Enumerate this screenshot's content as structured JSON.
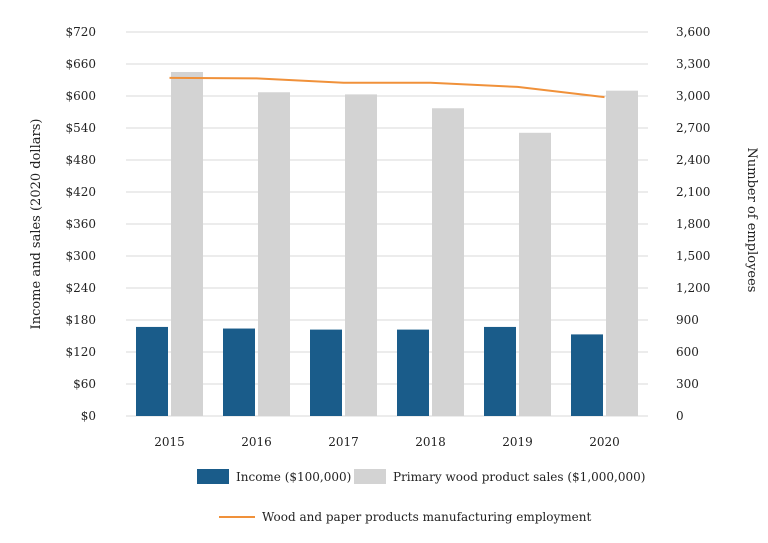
{
  "chart_data": {
    "type": "bar",
    "categories": [
      "2015",
      "2016",
      "2017",
      "2018",
      "2019",
      "2020"
    ],
    "series": [
      {
        "name": "Income ($100,000)",
        "type": "bar",
        "axis": "left",
        "color": "#1a5c8a",
        "values": [
          167,
          164,
          162,
          162,
          167,
          153
        ]
      },
      {
        "name": "Primary wood product sales ($1,000,000)",
        "type": "bar",
        "axis": "left",
        "color": "#d3d3d3",
        "values": [
          645,
          607,
          603,
          577,
          531,
          610
        ]
      },
      {
        "name": "Wood and paper products manufacturing employment",
        "type": "line",
        "axis": "right",
        "color": "#f0913a",
        "values": [
          3170,
          3165,
          3125,
          3125,
          3085,
          2990
        ]
      }
    ],
    "ylabel": "Income and sales (2020 dollars)",
    "ylabel_right": "Number of employees",
    "ylim": [
      0,
      720
    ],
    "ylim_right": [
      0,
      3600
    ],
    "yticks": [
      "$0",
      "$60",
      "$120",
      "$180",
      "$240",
      "$300",
      "$360",
      "$420",
      "$480",
      "$540",
      "$600",
      "$660",
      "$720"
    ],
    "yticks_right": [
      "0",
      "300",
      "600",
      "900",
      "1,200",
      "1,500",
      "1,800",
      "2,100",
      "2,400",
      "2,700",
      "3,000",
      "3,300",
      "3,600"
    ],
    "grid": true,
    "legend_position": "bottom"
  }
}
